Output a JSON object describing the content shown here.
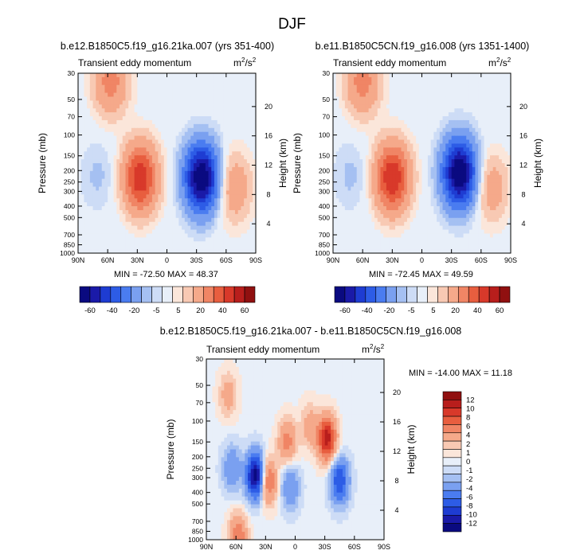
{
  "figure": {
    "title": "DJF"
  },
  "chart_data": [
    {
      "type": "heatmap",
      "title": "b.e12.B1850C5.f19_g16.21ka.007 (yrs 351-400)",
      "inner_label": "Transient eddy momentum",
      "units_base": "m",
      "units_sup1": "2",
      "units_mid": "/s",
      "units_sup2": "2",
      "ylabel": "Pressure (mb)",
      "y2label": "Height (km)",
      "x_ticks": [
        "90N",
        "60N",
        "30N",
        "0",
        "30S",
        "60S",
        "90S"
      ],
      "y_ticks": [
        "30",
        "50",
        "70",
        "100",
        "150",
        "200",
        "250",
        "300",
        "400",
        "500",
        "700",
        "850",
        "1000"
      ],
      "y2_ticks": [
        "20",
        "16",
        "12",
        "8",
        "4"
      ],
      "min_max": "MIN = -72.50  MAX = 48.37",
      "colorbar_labels": [
        "-60",
        "-40",
        "-20",
        "-5",
        "5",
        "20",
        "40",
        "60"
      ],
      "blobs": [
        {
          "lat": 27,
          "p": 230,
          "value": 48
        },
        {
          "lat": -35,
          "p": 230,
          "value": -72
        },
        {
          "lat": 57,
          "p": 35,
          "value": 25
        },
        {
          "lat": -68,
          "p": 280,
          "value": 18
        },
        {
          "lat": 70,
          "p": 220,
          "value": -6
        }
      ]
    },
    {
      "type": "heatmap",
      "title": "b.e11.B1850C5CN.f19_g16.008 (yrs 1351-1400)",
      "inner_label": "Transient eddy momentum",
      "units_base": "m",
      "units_sup1": "2",
      "units_mid": "/s",
      "units_sup2": "2",
      "ylabel": "Pressure (mb)",
      "y2label": "Height (km)",
      "x_ticks": [
        "90N",
        "60N",
        "30N",
        "0",
        "30S",
        "60S",
        "90S"
      ],
      "y_ticks": [
        "30",
        "50",
        "70",
        "100",
        "150",
        "200",
        "250",
        "300",
        "400",
        "500",
        "700",
        "850",
        "1000"
      ],
      "y2_ticks": [
        "20",
        "16",
        "12",
        "8",
        "4"
      ],
      "min_max": "MIN = -72.45  MAX = 49.59",
      "colorbar_labels": [
        "-60",
        "-40",
        "-20",
        "-5",
        "5",
        "20",
        "40",
        "60"
      ],
      "blobs": [
        {
          "lat": 30,
          "p": 230,
          "value": 50
        },
        {
          "lat": -38,
          "p": 210,
          "value": -72
        },
        {
          "lat": 60,
          "p": 35,
          "value": 25
        },
        {
          "lat": -70,
          "p": 280,
          "value": 16
        },
        {
          "lat": 72,
          "p": 220,
          "value": -6
        }
      ]
    },
    {
      "type": "heatmap",
      "title": "b.e12.B1850C5.f19_g16.21ka.007 - b.e11.B1850C5CN.f19_g16.008",
      "inner_label": "Transient eddy momentum",
      "units_base": "m",
      "units_sup1": "2",
      "units_mid": "/s",
      "units_sup2": "2",
      "ylabel": "Pressure (mb)",
      "y2label": "Height (km)",
      "x_ticks": [
        "90N",
        "60N",
        "30N",
        "0",
        "30S",
        "60S",
        "90S"
      ],
      "y_ticks": [
        "30",
        "50",
        "70",
        "100",
        "150",
        "200",
        "250",
        "300",
        "400",
        "500",
        "700",
        "850",
        "1000"
      ],
      "y2_ticks": [
        "20",
        "16",
        "12",
        "8",
        "4"
      ],
      "min_max": "MIN = -14.00  MAX = 11.18",
      "colorbar_labels": [
        "12",
        "10",
        "8",
        "6",
        "4",
        "2",
        "1",
        "0",
        "-1",
        "-2",
        "-4",
        "-6",
        "-8",
        "-10",
        "-12"
      ],
      "blobs": [
        {
          "lat": 40,
          "p": 290,
          "value": -14
        },
        {
          "lat": 28,
          "p": 320,
          "value": 7
        },
        {
          "lat": -32,
          "p": 140,
          "value": 11
        },
        {
          "lat": -45,
          "p": 320,
          "value": -8
        },
        {
          "lat": 8,
          "p": 150,
          "value": 5
        },
        {
          "lat": 5,
          "p": 360,
          "value": -4
        },
        {
          "lat": 64,
          "p": 250,
          "value": -4
        },
        {
          "lat": 68,
          "p": 60,
          "value": 3
        },
        {
          "lat": 58,
          "p": 950,
          "value": 6
        },
        {
          "lat": -15,
          "p": 110,
          "value": 3
        }
      ]
    }
  ]
}
